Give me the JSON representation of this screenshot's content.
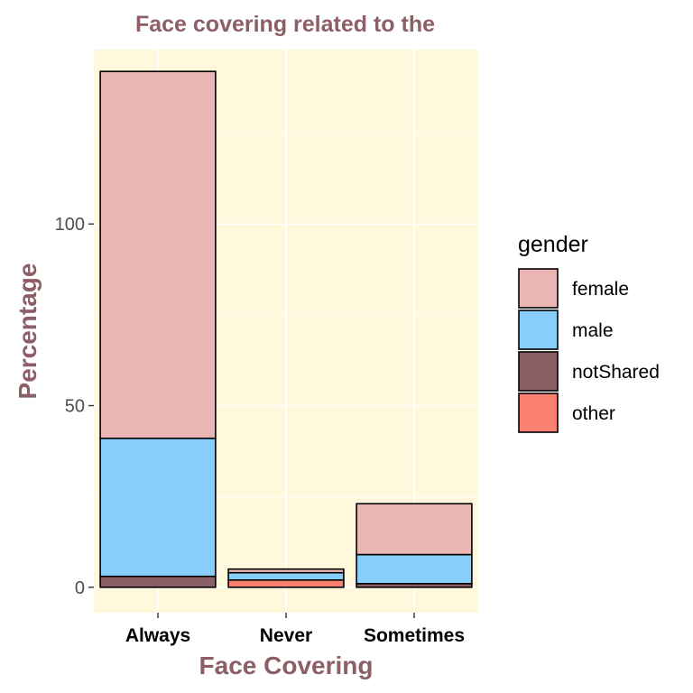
{
  "chart_data": {
    "type": "bar",
    "stacked": true,
    "title": "Face covering related to the",
    "xlabel": "Face Covering",
    "ylabel": "Percentage",
    "categories": [
      "Always",
      "Never",
      "Sometimes"
    ],
    "series": [
      {
        "name": "female",
        "color": "#ebb5b3",
        "values": [
          101,
          1,
          14
        ]
      },
      {
        "name": "male",
        "color": "#87cefa",
        "values": [
          38,
          2,
          8
        ]
      },
      {
        "name": "notShared",
        "color": "#8b5f65",
        "values": [
          3,
          0,
          1
        ]
      },
      {
        "name": "other",
        "color": "#fa8072",
        "values": [
          0,
          2,
          0
        ]
      }
    ],
    "stack_order_bottom_to_top": [
      "other",
      "notShared",
      "male",
      "female"
    ],
    "ylim": [
      -7,
      148
    ],
    "yticks": [
      0,
      50,
      100
    ],
    "legend": {
      "title": "gender",
      "position": "right"
    },
    "grid": true,
    "colors": {
      "panel_background": "#fff8dc",
      "grid": "#ffffff",
      "title": "#8b5f65",
      "bar_outline": "#000000"
    }
  }
}
